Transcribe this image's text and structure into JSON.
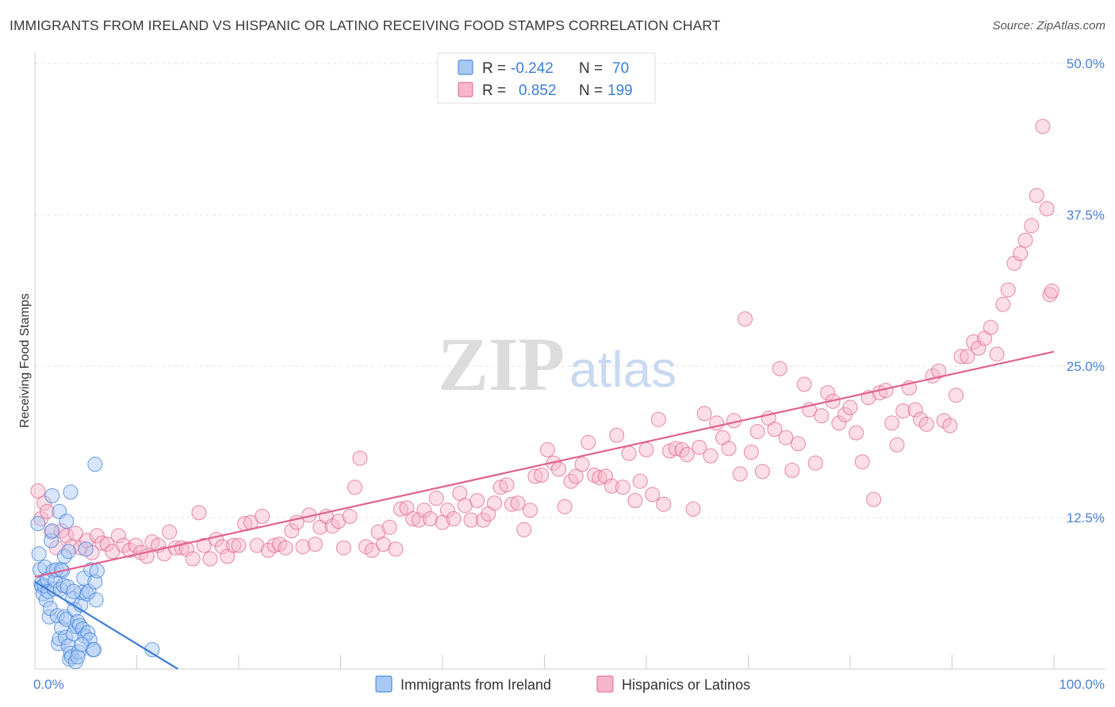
{
  "title": "IMMIGRANTS FROM IRELAND VS HISPANIC OR LATINO RECEIVING FOOD STAMPS CORRELATION CHART",
  "source": "Source: ZipAtlas.com",
  "watermark": {
    "zip": "ZIP",
    "atlas": "atlas"
  },
  "legend": {
    "rows": [
      {
        "r_label": "R =",
        "r_value": "-0.242",
        "n_label": "N =",
        "n_value": "70"
      },
      {
        "r_label": "R =",
        "r_value": "0.852",
        "n_label": "N =",
        "n_value": "199"
      }
    ]
  },
  "bottom_legend": [
    "Immigrants from Ireland",
    "Hispanics or Latinos"
  ],
  "colors": {
    "blue": "#3b7dd8",
    "blue_fill": "#a9c8f3",
    "pink": "#e0628e",
    "pink_fill": "#f6b6ca",
    "tick_label": "#4a7fd6",
    "grid": "#e3e3e3"
  },
  "chart_data": {
    "type": "scatter",
    "title": "IMMIGRANTS FROM IRELAND VS HISPANIC OR LATINO RECEIVING FOOD STAMPS CORRELATION CHART",
    "xlabel": "",
    "ylabel": "Receiving Food Stamps",
    "xlim": [
      0,
      100
    ],
    "ylim": [
      0,
      50
    ],
    "x_tick_labels": [
      "0.0%",
      "100.0%"
    ],
    "y_tick_labels": [
      "12.5%",
      "25.0%",
      "37.5%",
      "50.0%"
    ],
    "y_ticks": [
      12.5,
      25.0,
      37.5,
      50.0
    ],
    "grid": "horizontal dashed",
    "legend_position": "top-center",
    "series": [
      {
        "name": "Immigrants from Ireland",
        "color": "#3b7dd8",
        "r": -0.242,
        "n": 70,
        "trend": {
          "x": [
            0,
            15
          ],
          "y": [
            7.2,
            -0.5
          ]
        },
        "points": [
          [
            0.3,
            12.0
          ],
          [
            0.4,
            9.5
          ],
          [
            0.5,
            8.2
          ],
          [
            0.6,
            7.0
          ],
          [
            0.7,
            6.8
          ],
          [
            0.8,
            6.2
          ],
          [
            0.9,
            6.9
          ],
          [
            1.0,
            8.4
          ],
          [
            1.1,
            5.7
          ],
          [
            1.2,
            7.4
          ],
          [
            1.3,
            6.4
          ],
          [
            1.4,
            4.3
          ],
          [
            1.5,
            5.0
          ],
          [
            1.6,
            10.6
          ],
          [
            1.7,
            11.4
          ],
          [
            1.8,
            8.1
          ],
          [
            1.9,
            6.6
          ],
          [
            2.0,
            7.3
          ],
          [
            2.1,
            8.2
          ],
          [
            2.2,
            4.4
          ],
          [
            2.3,
            2.1
          ],
          [
            2.4,
            2.5
          ],
          [
            2.5,
            6.6
          ],
          [
            2.6,
            3.4
          ],
          [
            2.7,
            8.1
          ],
          [
            2.8,
            6.9
          ],
          [
            2.9,
            4.3
          ],
          [
            3.0,
            2.6
          ],
          [
            3.1,
            4.1
          ],
          [
            3.2,
            6.8
          ],
          [
            3.3,
            1.9
          ],
          [
            3.4,
            0.8
          ],
          [
            3.5,
            1.3
          ],
          [
            3.6,
            1.0
          ],
          [
            3.7,
            5.8
          ],
          [
            3.8,
            2.9
          ],
          [
            3.9,
            4.9
          ],
          [
            4.0,
            0.6
          ],
          [
            4.1,
            3.5
          ],
          [
            4.2,
            3.9
          ],
          [
            4.3,
            1.4
          ],
          [
            4.4,
            3.6
          ],
          [
            4.5,
            5.3
          ],
          [
            4.6,
            6.3
          ],
          [
            4.7,
            3.3
          ],
          [
            4.8,
            7.5
          ],
          [
            4.9,
            2.7
          ],
          [
            5.0,
            9.9
          ],
          [
            5.1,
            6.2
          ],
          [
            5.2,
            3.0
          ],
          [
            5.3,
            6.4
          ],
          [
            5.4,
            2.4
          ],
          [
            5.5,
            8.2
          ],
          [
            5.7,
            1.6
          ],
          [
            5.9,
            7.2
          ],
          [
            6.0,
            5.7
          ],
          [
            6.1,
            8.1
          ],
          [
            1.7,
            14.3
          ],
          [
            2.4,
            13.0
          ],
          [
            2.6,
            8.2
          ],
          [
            2.9,
            9.3
          ],
          [
            3.1,
            12.2
          ],
          [
            3.3,
            9.7
          ],
          [
            3.5,
            14.6
          ],
          [
            3.8,
            6.4
          ],
          [
            4.2,
            1.0
          ],
          [
            4.6,
            2.0
          ],
          [
            5.8,
            1.6
          ],
          [
            11.5,
            1.6
          ],
          [
            5.9,
            16.9
          ]
        ]
      },
      {
        "name": "Hispanics or Latinos",
        "color": "#e0628e",
        "r": 0.852,
        "n": 199,
        "trend": {
          "x": [
            0,
            100
          ],
          "y": [
            7.6,
            26.2
          ]
        },
        "points": [
          [
            0.3,
            14.7
          ],
          [
            0.6,
            12.4
          ],
          [
            0.9,
            13.7
          ],
          [
            1.2,
            13.0
          ],
          [
            1.6,
            11.3
          ],
          [
            2.1,
            10.0
          ],
          [
            2.6,
            11.4
          ],
          [
            3.1,
            11.0
          ],
          [
            3.6,
            10.1
          ],
          [
            4.0,
            11.2
          ],
          [
            4.5,
            10.0
          ],
          [
            5.1,
            10.6
          ],
          [
            5.6,
            9.6
          ],
          [
            6.1,
            11.0
          ],
          [
            6.6,
            10.4
          ],
          [
            7.1,
            10.3
          ],
          [
            7.6,
            9.7
          ],
          [
            8.2,
            11.0
          ],
          [
            8.7,
            10.2
          ],
          [
            9.3,
            9.8
          ],
          [
            9.9,
            10.2
          ],
          [
            10.4,
            9.6
          ],
          [
            11.0,
            9.3
          ],
          [
            11.5,
            10.5
          ],
          [
            12.1,
            10.2
          ],
          [
            12.7,
            9.5
          ],
          [
            13.2,
            11.3
          ],
          [
            13.8,
            10.0
          ],
          [
            14.4,
            10.0
          ],
          [
            14.9,
            9.9
          ],
          [
            15.5,
            9.1
          ],
          [
            16.1,
            12.9
          ],
          [
            16.6,
            10.2
          ],
          [
            17.2,
            9.1
          ],
          [
            17.8,
            10.7
          ],
          [
            18.4,
            10.1
          ],
          [
            18.9,
            9.3
          ],
          [
            19.5,
            10.2
          ],
          [
            20.0,
            10.2
          ],
          [
            20.6,
            12.0
          ],
          [
            21.2,
            12.1
          ],
          [
            21.8,
            10.2
          ],
          [
            22.3,
            12.6
          ],
          [
            22.9,
            9.8
          ],
          [
            23.5,
            10.2
          ],
          [
            24.0,
            10.3
          ],
          [
            24.6,
            10.0
          ],
          [
            25.2,
            11.4
          ],
          [
            25.7,
            12.1
          ],
          [
            26.3,
            10.1
          ],
          [
            26.9,
            12.7
          ],
          [
            27.5,
            10.3
          ],
          [
            28.0,
            11.7
          ],
          [
            28.6,
            12.6
          ],
          [
            29.2,
            11.8
          ],
          [
            29.8,
            12.2
          ],
          [
            30.3,
            10.0
          ],
          [
            30.9,
            12.6
          ],
          [
            31.4,
            15.0
          ],
          [
            31.9,
            17.4
          ],
          [
            32.5,
            10.1
          ],
          [
            33.1,
            9.8
          ],
          [
            33.7,
            11.3
          ],
          [
            34.2,
            10.3
          ],
          [
            34.8,
            11.7
          ],
          [
            35.4,
            9.9
          ],
          [
            35.9,
            13.2
          ],
          [
            36.5,
            13.3
          ],
          [
            37.1,
            12.4
          ],
          [
            37.7,
            12.3
          ],
          [
            38.2,
            13.1
          ],
          [
            38.8,
            12.4
          ],
          [
            39.4,
            14.1
          ],
          [
            40.0,
            12.1
          ],
          [
            40.5,
            13.1
          ],
          [
            41.1,
            12.4
          ],
          [
            41.7,
            14.5
          ],
          [
            42.2,
            13.5
          ],
          [
            42.8,
            12.3
          ],
          [
            43.4,
            13.9
          ],
          [
            44.0,
            12.3
          ],
          [
            44.5,
            12.8
          ],
          [
            45.1,
            13.7
          ],
          [
            45.7,
            15.0
          ],
          [
            46.3,
            15.2
          ],
          [
            46.8,
            13.6
          ],
          [
            47.4,
            13.7
          ],
          [
            48.0,
            11.5
          ],
          [
            48.6,
            13.1
          ],
          [
            49.1,
            15.9
          ],
          [
            49.7,
            16.0
          ],
          [
            50.3,
            18.1
          ],
          [
            50.9,
            17.0
          ],
          [
            51.4,
            16.5
          ],
          [
            52.0,
            13.4
          ],
          [
            52.6,
            15.5
          ],
          [
            53.1,
            15.9
          ],
          [
            53.7,
            16.9
          ],
          [
            54.3,
            18.7
          ],
          [
            54.9,
            16.0
          ],
          [
            55.4,
            15.8
          ],
          [
            56.0,
            15.9
          ],
          [
            56.6,
            15.1
          ],
          [
            57.1,
            19.3
          ],
          [
            57.7,
            15.0
          ],
          [
            58.3,
            17.8
          ],
          [
            58.9,
            13.9
          ],
          [
            59.4,
            15.5
          ],
          [
            60.0,
            18.1
          ],
          [
            60.6,
            14.4
          ],
          [
            61.2,
            20.6
          ],
          [
            61.7,
            13.6
          ],
          [
            62.3,
            18.0
          ],
          [
            62.9,
            18.2
          ],
          [
            63.5,
            18.1
          ],
          [
            64.0,
            17.7
          ],
          [
            64.6,
            13.2
          ],
          [
            65.2,
            18.3
          ],
          [
            65.7,
            21.1
          ],
          [
            66.3,
            17.6
          ],
          [
            66.9,
            20.3
          ],
          [
            67.5,
            19.1
          ],
          [
            68.1,
            18.2
          ],
          [
            68.6,
            20.5
          ],
          [
            69.2,
            16.1
          ],
          [
            69.7,
            28.9
          ],
          [
            70.3,
            17.9
          ],
          [
            70.9,
            19.6
          ],
          [
            71.4,
            16.3
          ],
          [
            72.0,
            20.7
          ],
          [
            72.6,
            19.8
          ],
          [
            73.1,
            24.8
          ],
          [
            73.7,
            19.1
          ],
          [
            74.3,
            16.4
          ],
          [
            74.9,
            18.6
          ],
          [
            75.5,
            23.5
          ],
          [
            76.0,
            21.4
          ],
          [
            76.6,
            17.0
          ],
          [
            77.2,
            20.9
          ],
          [
            77.8,
            22.8
          ],
          [
            78.3,
            22.1
          ],
          [
            78.9,
            20.3
          ],
          [
            79.5,
            21.0
          ],
          [
            80.0,
            21.6
          ],
          [
            80.6,
            19.5
          ],
          [
            81.2,
            17.1
          ],
          [
            81.8,
            22.4
          ],
          [
            82.3,
            14.0
          ],
          [
            82.9,
            22.8
          ],
          [
            83.5,
            23.0
          ],
          [
            84.1,
            20.3
          ],
          [
            84.6,
            18.5
          ],
          [
            85.2,
            21.3
          ],
          [
            85.8,
            23.2
          ],
          [
            86.4,
            21.4
          ],
          [
            86.9,
            20.6
          ],
          [
            87.5,
            20.2
          ],
          [
            88.1,
            24.2
          ],
          [
            88.7,
            24.6
          ],
          [
            89.2,
            20.5
          ],
          [
            89.8,
            20.1
          ],
          [
            90.4,
            22.6
          ],
          [
            90.9,
            25.8
          ],
          [
            91.5,
            25.8
          ],
          [
            92.1,
            27.0
          ],
          [
            92.6,
            26.5
          ],
          [
            93.2,
            27.3
          ],
          [
            93.8,
            28.2
          ],
          [
            94.4,
            26.0
          ],
          [
            95.0,
            30.1
          ],
          [
            95.5,
            31.3
          ],
          [
            96.1,
            33.5
          ],
          [
            96.7,
            34.3
          ],
          [
            97.2,
            35.4
          ],
          [
            97.8,
            36.6
          ],
          [
            98.3,
            39.1
          ],
          [
            98.9,
            44.8
          ],
          [
            99.3,
            38.0
          ],
          [
            99.6,
            30.9
          ],
          [
            99.8,
            31.2
          ]
        ]
      }
    ]
  }
}
